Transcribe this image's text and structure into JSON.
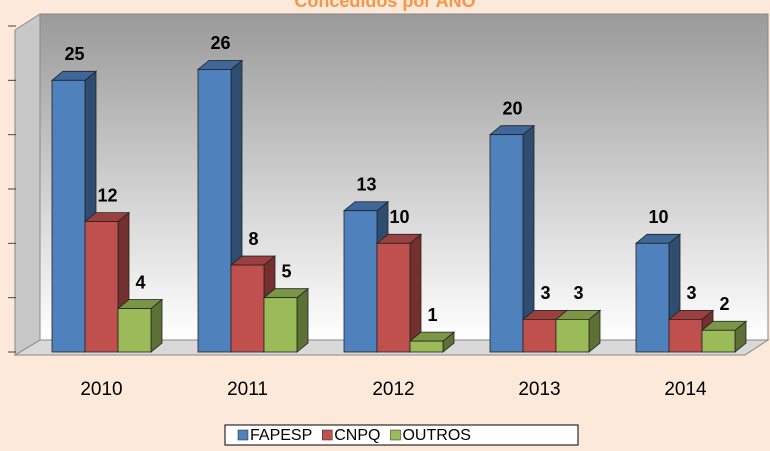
{
  "chart_data": {
    "type": "bar3d",
    "title": "Concedidos por ANO",
    "categories": [
      "2010",
      "2011",
      "2012",
      "2013",
      "2014"
    ],
    "series": [
      {
        "name": "FAPESP",
        "color": "#4f81bd",
        "values": [
          25,
          26,
          13,
          20,
          10
        ]
      },
      {
        "name": "CNPQ",
        "color": "#c0504d",
        "values": [
          12,
          8,
          10,
          3,
          3
        ]
      },
      {
        "name": "OUTROS",
        "color": "#9bbb59",
        "values": [
          4,
          5,
          1,
          3,
          2
        ]
      }
    ],
    "ylim": [
      0,
      30
    ],
    "yticks": [
      0,
      5,
      10,
      15,
      20,
      25,
      30
    ],
    "legend": "bottom"
  }
}
